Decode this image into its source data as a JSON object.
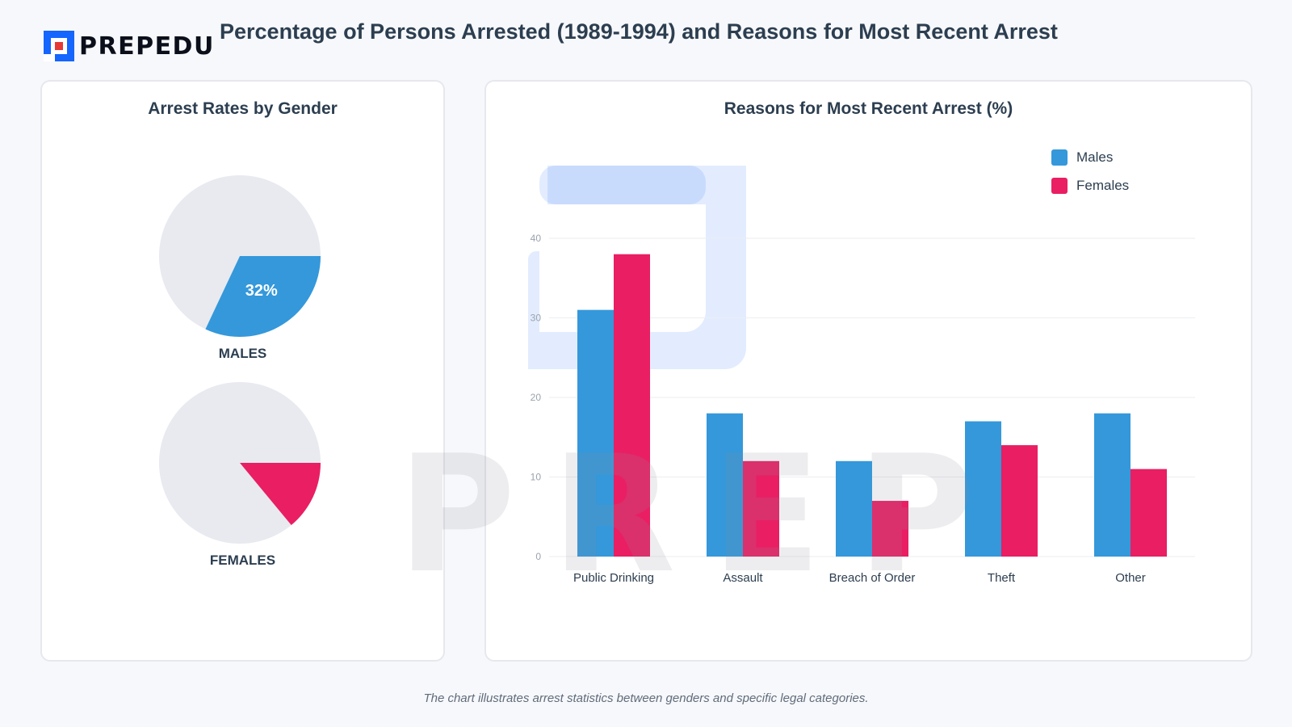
{
  "header": {
    "logo_text": "PREPEDU",
    "title": "Percentage of Persons Arrested (1989-1994) and Reasons for Most Recent Arrest"
  },
  "colors": {
    "males": "#3498db",
    "females": "#e91e63",
    "pie_background": "#e8eaef"
  },
  "chart_data": [
    {
      "type": "pie",
      "title": "Arrest Rates by Gender",
      "charts": [
        {
          "name": "MALES",
          "value": 32,
          "label": "32%",
          "color": "#3498db"
        },
        {
          "name": "FEMALES",
          "value": 14,
          "label": "",
          "color": "#e91e63"
        }
      ]
    },
    {
      "type": "bar",
      "title": "Reasons for Most Recent Arrest (%)",
      "categories": [
        "Public Drinking",
        "Assault",
        "Breach of Order",
        "Theft",
        "Other"
      ],
      "series": [
        {
          "name": "Males",
          "values": [
            31,
            18,
            12,
            17,
            18
          ],
          "color": "#3498db"
        },
        {
          "name": "Females",
          "values": [
            38,
            12,
            7,
            14,
            11
          ],
          "color": "#e91e63"
        }
      ],
      "yticks": [
        0,
        10,
        20,
        30,
        40
      ],
      "ylim": [
        0,
        40
      ],
      "legend_position": "top-right",
      "grid": true
    }
  ],
  "watermark": "PREP",
  "footer": "The chart illustrates arrest statistics between genders and specific legal categories."
}
